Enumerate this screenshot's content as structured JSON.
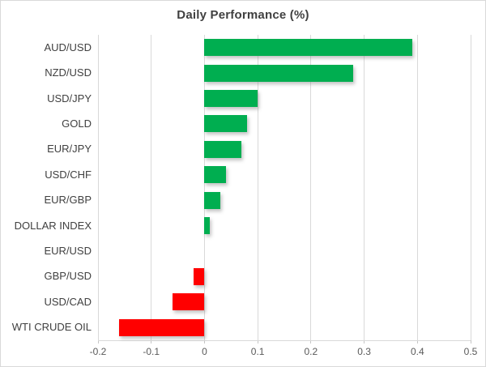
{
  "chart_data": {
    "type": "bar",
    "orientation": "horizontal",
    "title": "Daily Performance (%)",
    "categories": [
      "AUD/USD",
      "NZD/USD",
      "USD/JPY",
      "GOLD",
      "EUR/JPY",
      "USD/CHF",
      "EUR/GBP",
      "DOLLAR INDEX",
      "EUR/USD",
      "GBP/USD",
      "USD/CAD",
      "WTI CRUDE OIL"
    ],
    "values": [
      0.39,
      0.28,
      0.1,
      0.08,
      0.07,
      0.04,
      0.03,
      0.01,
      0.0,
      -0.02,
      -0.06,
      -0.16
    ],
    "xlabel": "",
    "ylabel": "",
    "xlim": [
      -0.2,
      0.5
    ],
    "xticks": [
      -0.2,
      -0.1,
      0,
      0.1,
      0.2,
      0.3,
      0.4,
      0.5
    ],
    "xtick_labels": [
      "-0.2",
      "-0.1",
      "0",
      "0.1",
      "0.2",
      "0.3",
      "0.4",
      "0.5"
    ],
    "grid": true,
    "legend": false,
    "colors": {
      "positive": "#00AE50",
      "negative": "#FF0000",
      "gridline": "#D9D9D9",
      "axis_text": "#595959",
      "category_text": "#404040",
      "title_text": "#404040",
      "background": "#FFFFFF"
    }
  }
}
